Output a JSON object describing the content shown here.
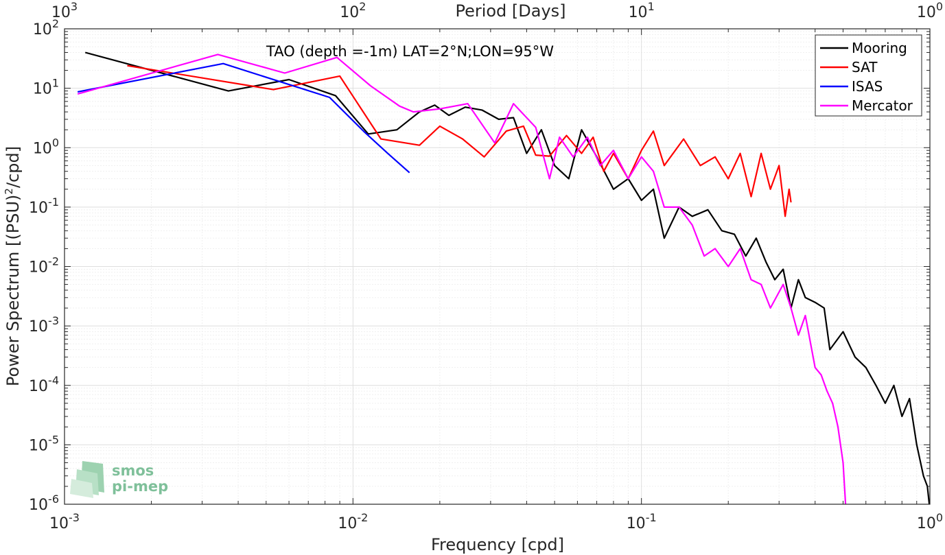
{
  "chart_data": {
    "type": "line",
    "title": "",
    "annotation": "TAO (depth =-1m) LAT=2°N;LON=95°W",
    "xlabel": "Frequency [cpd]",
    "ylabel_main": "Power Spectrum [(PSU)",
    "ylabel_sup": "2",
    "ylabel_tail": "/cpd]",
    "x2label": "Period [Days]",
    "xscale": "log",
    "yscale": "log",
    "xlim": [
      0.001,
      1
    ],
    "ylim": [
      1e-06,
      100
    ],
    "grid": true,
    "legend_position": "top-right",
    "x_ticks": [
      {
        "base": "10",
        "exp": "-3"
      },
      {
        "base": "10",
        "exp": "-2"
      },
      {
        "base": "10",
        "exp": "-1"
      },
      {
        "base": "10",
        "exp": "0"
      }
    ],
    "x2_ticks": [
      {
        "base": "10",
        "exp": "3"
      },
      {
        "base": "10",
        "exp": "2"
      },
      {
        "base": "10",
        "exp": "1"
      },
      {
        "base": "10",
        "exp": "0"
      }
    ],
    "y_ticks": [
      {
        "base": "10",
        "exp": "2"
      },
      {
        "base": "10",
        "exp": "1"
      },
      {
        "base": "10",
        "exp": "0"
      },
      {
        "base": "10",
        "exp": "-1"
      },
      {
        "base": "10",
        "exp": "-2"
      },
      {
        "base": "10",
        "exp": "-3"
      },
      {
        "base": "10",
        "exp": "-4"
      },
      {
        "base": "10",
        "exp": "-5"
      },
      {
        "base": "10",
        "exp": "-6"
      }
    ],
    "series": [
      {
        "name": "Mooring",
        "color": "#000000",
        "points": [
          [
            0.00118,
            40
          ],
          [
            0.0037,
            9
          ],
          [
            0.006,
            14
          ],
          [
            0.0087,
            7.5
          ],
          [
            0.0113,
            1.7
          ],
          [
            0.0142,
            2
          ],
          [
            0.017,
            4
          ],
          [
            0.0192,
            5.2
          ],
          [
            0.0215,
            3.5
          ],
          [
            0.0245,
            4.8
          ],
          [
            0.028,
            4.3
          ],
          [
            0.032,
            3
          ],
          [
            0.036,
            3.2
          ],
          [
            0.04,
            0.8
          ],
          [
            0.045,
            2
          ],
          [
            0.05,
            0.5
          ],
          [
            0.056,
            0.3
          ],
          [
            0.062,
            2
          ],
          [
            0.07,
            0.7
          ],
          [
            0.08,
            0.2
          ],
          [
            0.09,
            0.3
          ],
          [
            0.1,
            0.13
          ],
          [
            0.11,
            0.2
          ],
          [
            0.12,
            0.03
          ],
          [
            0.135,
            0.1
          ],
          [
            0.15,
            0.07
          ],
          [
            0.17,
            0.09
          ],
          [
            0.19,
            0.04
          ],
          [
            0.21,
            0.035
          ],
          [
            0.23,
            0.015
          ],
          [
            0.25,
            0.03
          ],
          [
            0.27,
            0.012
          ],
          [
            0.29,
            0.006
          ],
          [
            0.31,
            0.009
          ],
          [
            0.33,
            0.002
          ],
          [
            0.35,
            0.006
          ],
          [
            0.37,
            0.003
          ],
          [
            0.4,
            0.0025
          ],
          [
            0.43,
            0.002
          ],
          [
            0.45,
            0.0004
          ],
          [
            0.5,
            0.0008
          ],
          [
            0.55,
            0.0003
          ],
          [
            0.6,
            0.0002
          ],
          [
            0.65,
            0.0001
          ],
          [
            0.7,
            5e-05
          ],
          [
            0.75,
            0.0001
          ],
          [
            0.8,
            3e-05
          ],
          [
            0.85,
            6e-05
          ],
          [
            0.9,
            1e-05
          ],
          [
            0.95,
            3e-06
          ],
          [
            0.98,
            2e-06
          ],
          [
            0.995,
            1e-06
          ]
        ]
      },
      {
        "name": "SAT",
        "color": "#ff0000",
        "points": [
          [
            0.00165,
            24
          ],
          [
            0.0053,
            9.5
          ],
          [
            0.009,
            16
          ],
          [
            0.0125,
            1.4
          ],
          [
            0.017,
            1.1
          ],
          [
            0.02,
            2.3
          ],
          [
            0.024,
            1.4
          ],
          [
            0.0285,
            0.7
          ],
          [
            0.034,
            1.9
          ],
          [
            0.039,
            2.3
          ],
          [
            0.043,
            0.75
          ],
          [
            0.048,
            0.72
          ],
          [
            0.055,
            1.6
          ],
          [
            0.062,
            0.8
          ],
          [
            0.068,
            1.5
          ],
          [
            0.074,
            0.4
          ],
          [
            0.08,
            0.8
          ],
          [
            0.09,
            0.3
          ],
          [
            0.1,
            0.9
          ],
          [
            0.11,
            1.9
          ],
          [
            0.12,
            0.5
          ],
          [
            0.14,
            1.4
          ],
          [
            0.16,
            0.5
          ],
          [
            0.18,
            0.7
          ],
          [
            0.2,
            0.3
          ],
          [
            0.22,
            0.8
          ],
          [
            0.24,
            0.15
          ],
          [
            0.26,
            0.8
          ],
          [
            0.28,
            0.2
          ],
          [
            0.3,
            0.5
          ],
          [
            0.315,
            0.07
          ],
          [
            0.325,
            0.2
          ],
          [
            0.33,
            0.12
          ]
        ]
      },
      {
        "name": "ISAS",
        "color": "#0000ff",
        "points": [
          [
            0.00111,
            8.7
          ],
          [
            0.00355,
            26
          ],
          [
            0.0083,
            7
          ],
          [
            0.011,
            1.8
          ],
          [
            0.0132,
            0.8
          ],
          [
            0.0157,
            0.38
          ]
        ]
      },
      {
        "name": "Mercator",
        "color": "#ff00ff",
        "points": [
          [
            0.00111,
            8
          ],
          [
            0.0034,
            37
          ],
          [
            0.0058,
            18
          ],
          [
            0.0088,
            33
          ],
          [
            0.0115,
            11
          ],
          [
            0.0145,
            5
          ],
          [
            0.0162,
            4
          ],
          [
            0.02,
            4.5
          ],
          [
            0.025,
            5.5
          ],
          [
            0.031,
            1.2
          ],
          [
            0.036,
            5.5
          ],
          [
            0.043,
            2.2
          ],
          [
            0.048,
            0.3
          ],
          [
            0.052,
            1.5
          ],
          [
            0.058,
            0.7
          ],
          [
            0.065,
            1.5
          ],
          [
            0.072,
            0.5
          ],
          [
            0.08,
            0.9
          ],
          [
            0.09,
            0.3
          ],
          [
            0.1,
            0.7
          ],
          [
            0.11,
            0.4
          ],
          [
            0.12,
            0.1
          ],
          [
            0.135,
            0.1
          ],
          [
            0.15,
            0.05
          ],
          [
            0.165,
            0.015
          ],
          [
            0.18,
            0.02
          ],
          [
            0.2,
            0.01
          ],
          [
            0.22,
            0.02
          ],
          [
            0.24,
            0.006
          ],
          [
            0.26,
            0.005
          ],
          [
            0.28,
            0.002
          ],
          [
            0.31,
            0.005
          ],
          [
            0.33,
            0.002
          ],
          [
            0.35,
            0.0007
          ],
          [
            0.37,
            0.0015
          ],
          [
            0.4,
            0.0002
          ],
          [
            0.42,
            0.00015
          ],
          [
            0.44,
            8e-05
          ],
          [
            0.46,
            5e-05
          ],
          [
            0.48,
            2e-05
          ],
          [
            0.5,
            5e-06
          ],
          [
            0.51,
            1e-06
          ]
        ]
      }
    ]
  },
  "logo": {
    "line1": "smos",
    "line2": "pi-mep",
    "color": "#7fc09a"
  }
}
